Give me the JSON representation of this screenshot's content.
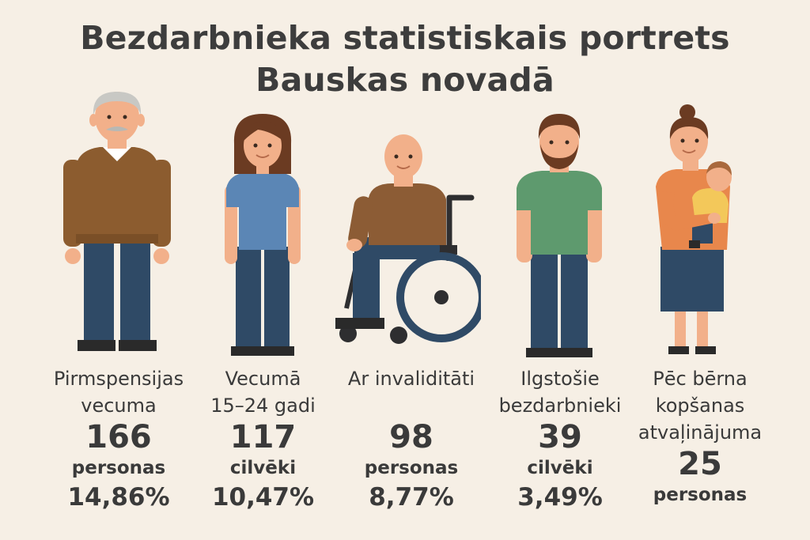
{
  "title": {
    "line1": "Bezdarbnieka statistiskais portrets",
    "line2": "Bauskas novadā"
  },
  "groups": [
    {
      "label_line1": "Pirmspensijas",
      "label_line2": "vecuma",
      "count": "166",
      "unit": "personas",
      "percent": "14,86%",
      "icon": "elderly-man-icon"
    },
    {
      "label_line1": "Vecumā",
      "label_line2": "15–24 gadi",
      "count": "117",
      "unit": "cilvēki",
      "percent": "10,47%",
      "icon": "young-woman-icon"
    },
    {
      "label_line1": "Ar invaliditāti",
      "count": "98",
      "unit": "personas",
      "percent": "8,77%",
      "icon": "wheelchair-user-icon"
    },
    {
      "label_line1": "Ilgstošie",
      "label_line2": "bezdarbnieki",
      "count": "39",
      "unit": "cilvēki",
      "percent": "3,49%",
      "icon": "bearded-man-icon"
    },
    {
      "label_line1": "Pēc bērna",
      "label_line2": "kopšanas",
      "label_line3": "atvaļinājuma",
      "count": "25",
      "unit": "personas",
      "icon": "mother-with-child-icon"
    }
  ],
  "colors": {
    "background": "#f6efe5",
    "text": "#3a3a3a",
    "skin": "#f2b08a",
    "trousers": "#2f4a66"
  }
}
